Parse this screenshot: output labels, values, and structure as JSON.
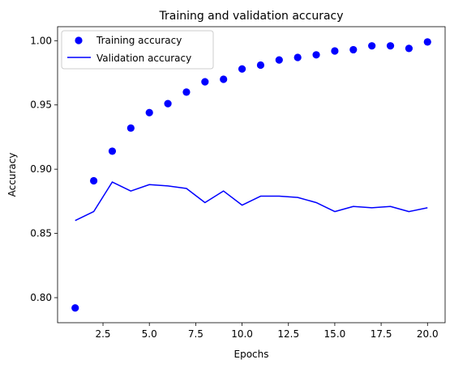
{
  "chart_data": {
    "type": "line",
    "title": "Training and validation accuracy",
    "xlabel": "Epochs",
    "ylabel": "Accuracy",
    "xlim": [
      0.05,
      20.95
    ],
    "ylim": [
      0.7805,
      1.0109
    ],
    "x_ticks": [
      2.5,
      5.0,
      7.5,
      10.0,
      12.5,
      15.0,
      17.5,
      20.0
    ],
    "x_tick_labels": [
      "2.5",
      "5.0",
      "7.5",
      "10.0",
      "12.5",
      "15.0",
      "17.5",
      "20.0"
    ],
    "y_ticks": [
      0.8,
      0.85,
      0.9,
      0.95,
      1.0
    ],
    "y_tick_labels": [
      "0.80",
      "0.85",
      "0.90",
      "0.95",
      "1.00"
    ],
    "grid": false,
    "legend_position": "top-left",
    "x": [
      1,
      2,
      3,
      4,
      5,
      6,
      7,
      8,
      9,
      10,
      11,
      12,
      13,
      14,
      15,
      16,
      17,
      18,
      19,
      20
    ],
    "series": [
      {
        "name": "Training accuracy",
        "style": "markers",
        "color": "#0000ff",
        "values": [
          0.792,
          0.891,
          0.914,
          0.932,
          0.944,
          0.951,
          0.96,
          0.968,
          0.97,
          0.978,
          0.981,
          0.985,
          0.987,
          0.989,
          0.992,
          0.993,
          0.996,
          0.996,
          0.994,
          0.999
        ]
      },
      {
        "name": "Validation accuracy",
        "style": "line",
        "color": "#0000ff",
        "values": [
          0.86,
          0.867,
          0.89,
          0.883,
          0.888,
          0.887,
          0.885,
          0.874,
          0.883,
          0.872,
          0.879,
          0.879,
          0.878,
          0.874,
          0.867,
          0.871,
          0.87,
          0.871,
          0.867,
          0.87
        ]
      }
    ]
  }
}
